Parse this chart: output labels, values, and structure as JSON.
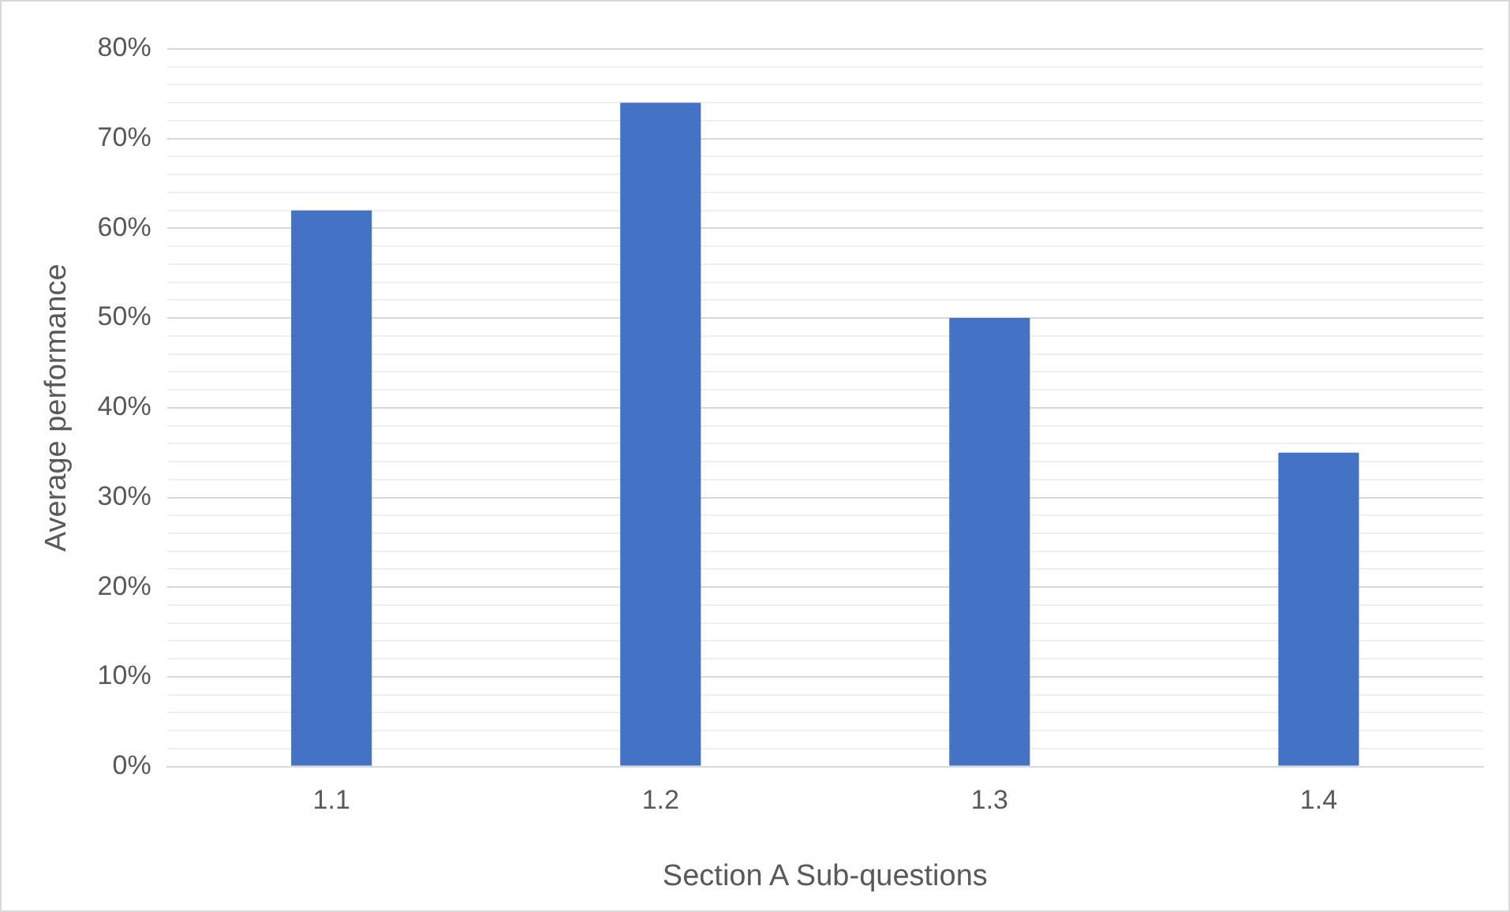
{
  "chart_data": {
    "type": "bar",
    "xlabel": "Section A Sub-questions",
    "ylabel": "Average performance",
    "categories": [
      "1.1",
      "1.2",
      "1.3",
      "1.4"
    ],
    "values": [
      62,
      74,
      50,
      35
    ],
    "color": "#4472c4",
    "ylim": [
      0,
      80
    ],
    "yticks": [
      {
        "value": 0,
        "label": "0%"
      },
      {
        "value": 2,
        "label": null
      },
      {
        "value": 4,
        "label": null
      },
      {
        "value": 6,
        "label": null
      },
      {
        "value": 8,
        "label": null
      },
      {
        "value": 10,
        "label": "10%"
      },
      {
        "value": 12,
        "label": null
      },
      {
        "value": 14,
        "label": null
      },
      {
        "value": 16,
        "label": null
      },
      {
        "value": 18,
        "label": null
      },
      {
        "value": 20,
        "label": "20%"
      },
      {
        "value": 22,
        "label": null
      },
      {
        "value": 24,
        "label": null
      },
      {
        "value": 26,
        "label": null
      },
      {
        "value": 28,
        "label": null
      },
      {
        "value": 30,
        "label": "30%"
      },
      {
        "value": 32,
        "label": null
      },
      {
        "value": 34,
        "label": null
      },
      {
        "value": 36,
        "label": null
      },
      {
        "value": 38,
        "label": null
      },
      {
        "value": 40,
        "label": "40%"
      },
      {
        "value": 42,
        "label": null
      },
      {
        "value": 44,
        "label": null
      },
      {
        "value": 46,
        "label": null
      },
      {
        "value": 48,
        "label": null
      },
      {
        "value": 50,
        "label": "50%"
      },
      {
        "value": 52,
        "label": null
      },
      {
        "value": 54,
        "label": null
      },
      {
        "value": 56,
        "label": null
      },
      {
        "value": 58,
        "label": null
      },
      {
        "value": 60,
        "label": "60%"
      },
      {
        "value": 62,
        "label": null
      },
      {
        "value": 64,
        "label": null
      },
      {
        "value": 66,
        "label": null
      },
      {
        "value": 68,
        "label": null
      },
      {
        "value": 70,
        "label": "70%"
      },
      {
        "value": 72,
        "label": null
      },
      {
        "value": 74,
        "label": null
      },
      {
        "value": 76,
        "label": null
      },
      {
        "value": 78,
        "label": null
      },
      {
        "value": 80,
        "label": "80%"
      }
    ],
    "grid": "y",
    "legend": false
  }
}
